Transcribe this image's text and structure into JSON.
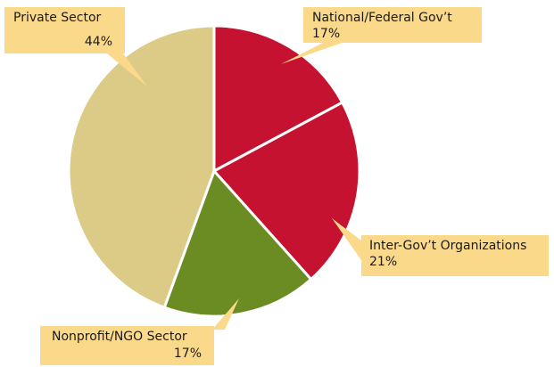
{
  "chart_data": {
    "type": "pie",
    "categories": [
      "National/Federal Gov’t",
      "Inter-Gov’t Organizations",
      "Nonprofit/NGO Sector",
      "Private Sector"
    ],
    "values": [
      17,
      21,
      17,
      44
    ],
    "value_labels": [
      "17%",
      "21%",
      "17%",
      "44%"
    ],
    "colors": [
      "#c41230",
      "#c41230",
      "#6b8c23",
      "#dccb87"
    ]
  }
}
